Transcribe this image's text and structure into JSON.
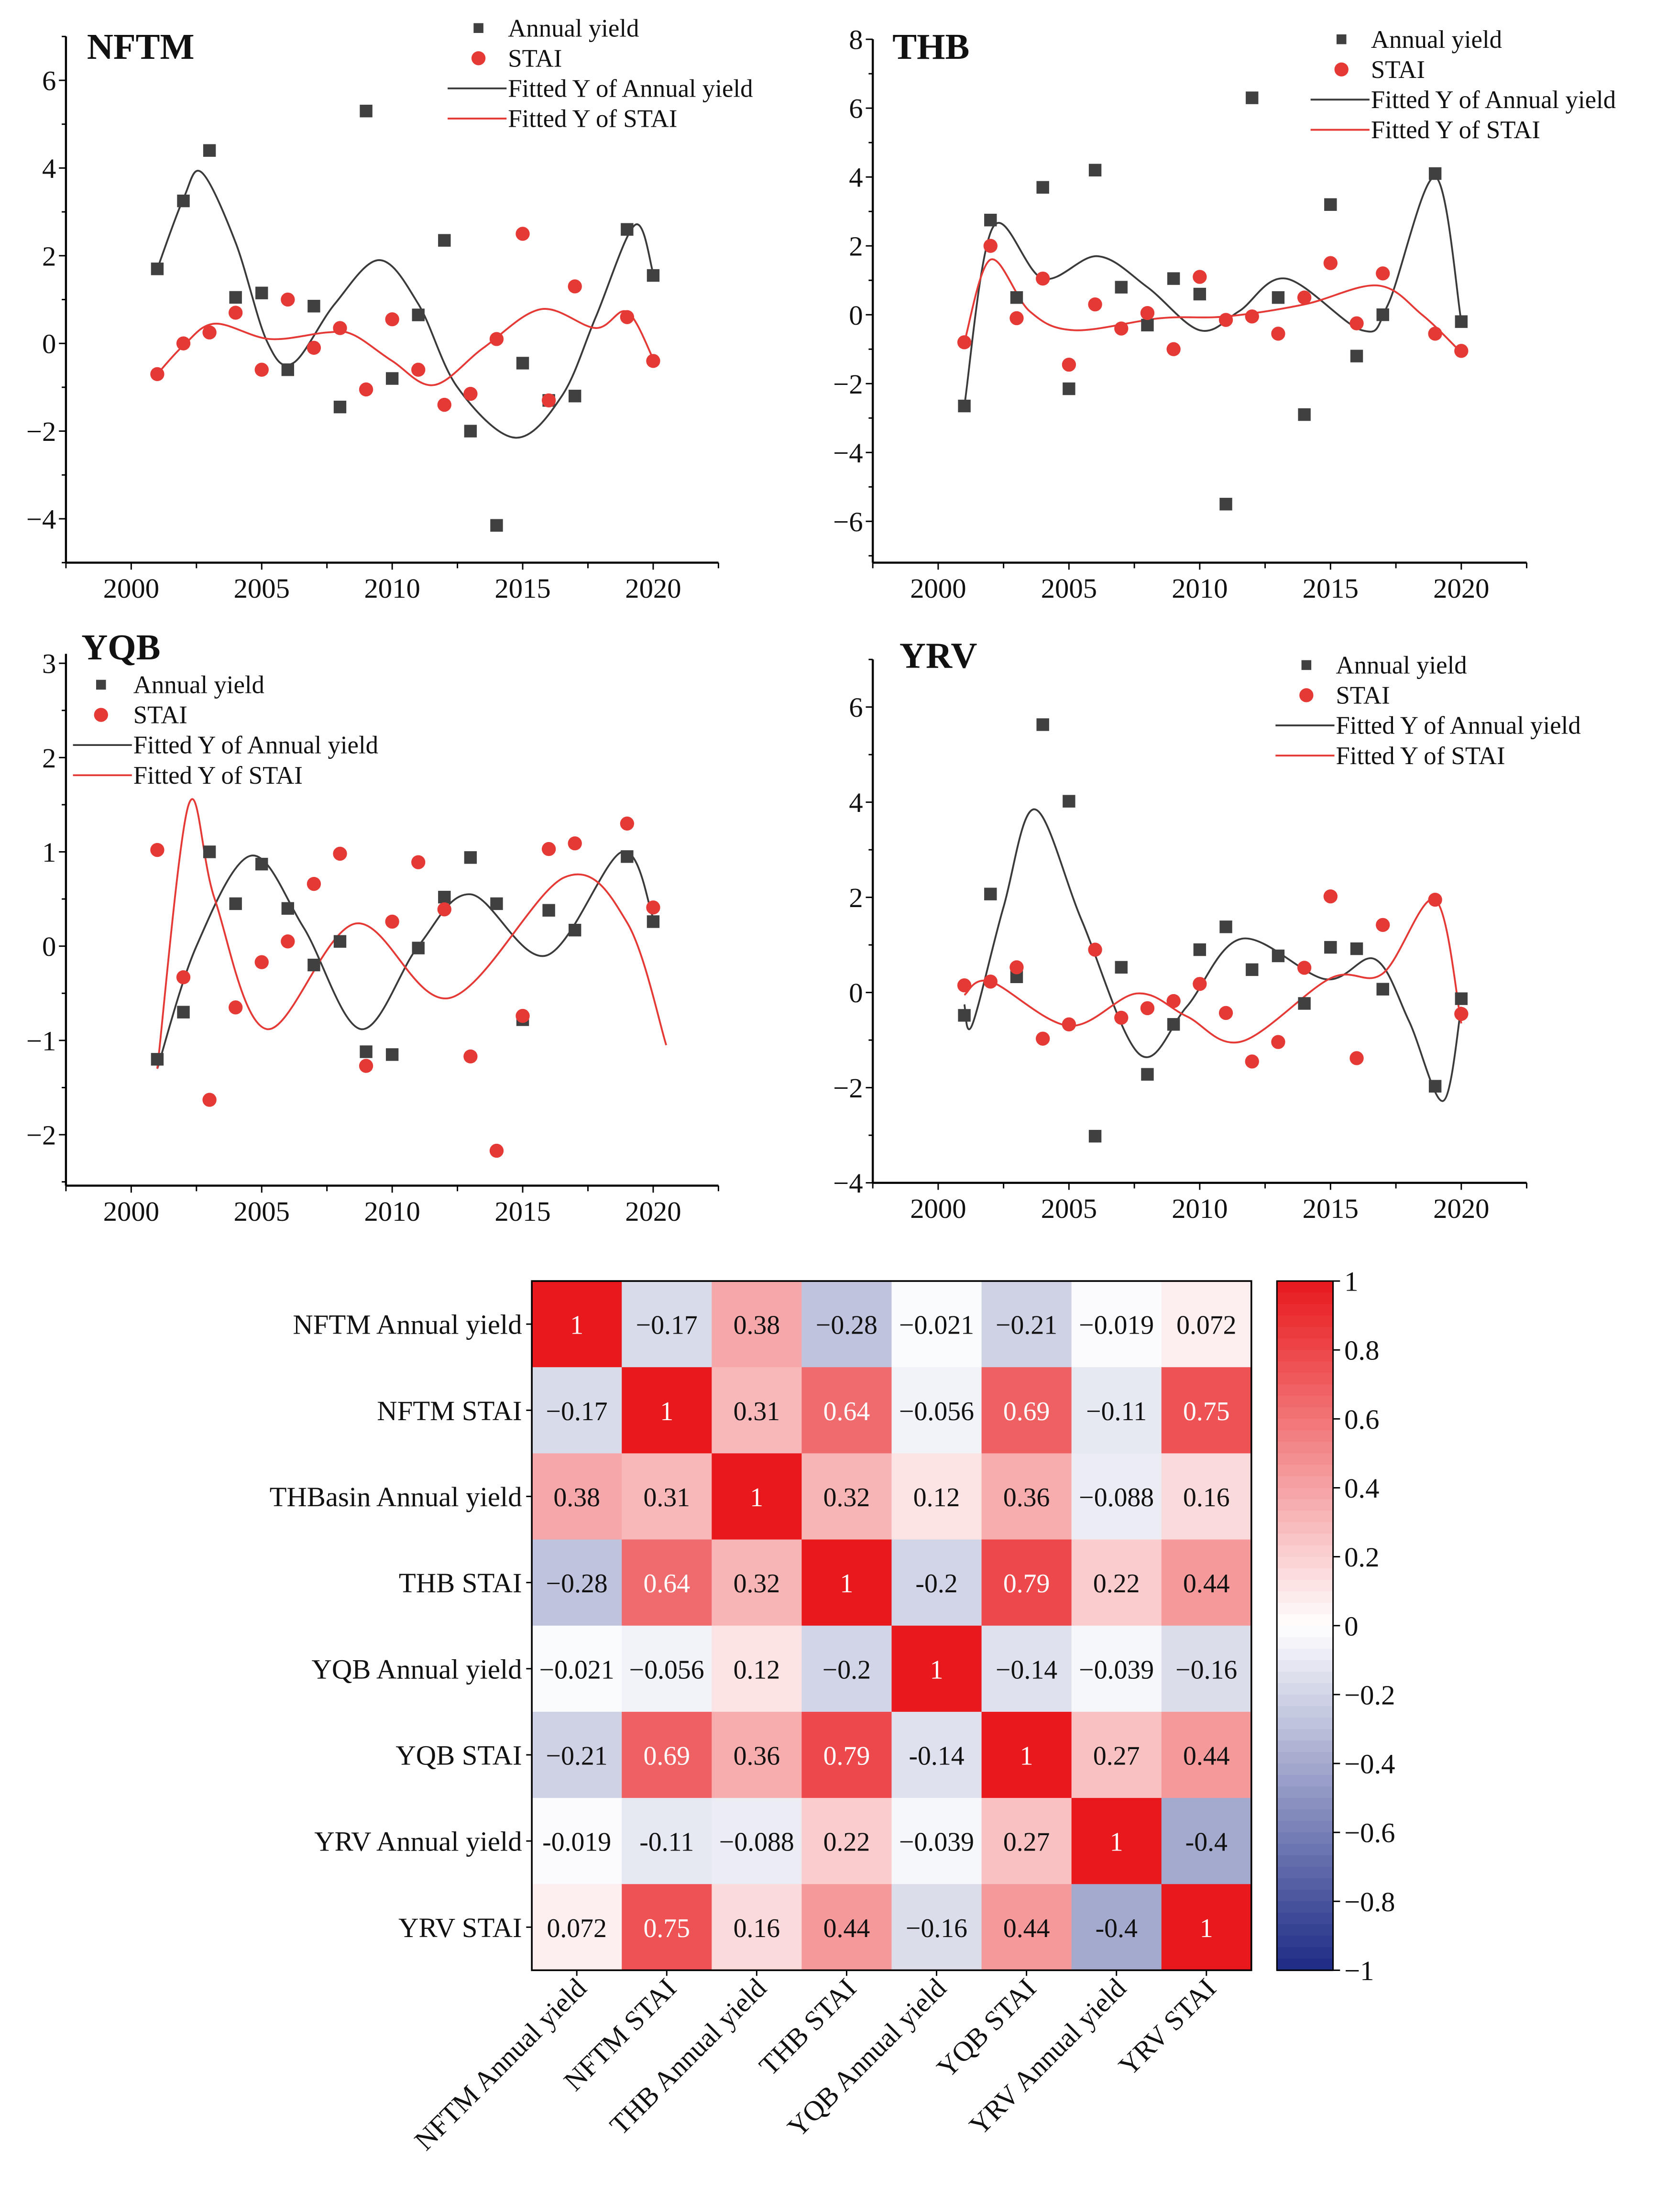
{
  "chart_data": [
    {
      "type": "scatter",
      "title": "NFTM",
      "xlim": [
        1997.5,
        2022.5
      ],
      "ylim": [
        -5,
        7
      ],
      "xticks": [
        2000,
        2005,
        2010,
        2015,
        2020
      ],
      "yticks": [
        -4,
        -2,
        0,
        2,
        4,
        6
      ],
      "legend_position": "top-right",
      "legend": [
        "Annual yield",
        "STAI",
        "Fitted Y of Annual yield",
        "Fitted Y of STAI"
      ],
      "x": [
        2001,
        2002,
        2003,
        2004,
        2005,
        2006,
        2007,
        2008,
        2009,
        2010,
        2011,
        2012,
        2013,
        2014,
        2015,
        2016,
        2017,
        2019,
        2020
      ],
      "series": [
        {
          "name": "Annual yield",
          "values": [
            1.7,
            3.25,
            4.4,
            1.05,
            1.15,
            -0.6,
            0.85,
            -1.45,
            5.3,
            -0.8,
            0.65,
            2.35,
            -2.0,
            -4.15,
            -0.45,
            -1.3,
            -1.2,
            2.6,
            1.55
          ]
        },
        {
          "name": "STAI",
          "values": [
            -0.7,
            0.0,
            0.25,
            0.7,
            -0.6,
            1.0,
            -0.1,
            0.35,
            -1.05,
            0.55,
            -0.6,
            -1.4,
            -1.15,
            0.1,
            2.5,
            -1.3,
            1.3,
            0.6,
            -0.4
          ]
        }
      ],
      "fitted": [
        {
          "name": "Fitted Y of Annual yield",
          "x": [
            2001,
            2002,
            2002.7,
            2004,
            2005.2,
            2006.2,
            2007.8,
            2009.5,
            2011,
            2012.5,
            2014.7,
            2016.5,
            2017.8,
            2019.3,
            2020
          ],
          "y": [
            1.7,
            3.3,
            3.9,
            2.3,
            0.05,
            -0.45,
            0.9,
            1.9,
            0.9,
            -1.0,
            -2.15,
            -1.2,
            0.6,
            2.7,
            1.6
          ]
        },
        {
          "name": "Fitted Y of STAI",
          "x": [
            2001,
            2002,
            2003.2,
            2005.3,
            2007.5,
            2008.5,
            2010,
            2011.6,
            2013.5,
            2015.7,
            2017.8,
            2019,
            2020
          ],
          "y": [
            -0.7,
            -0.05,
            0.45,
            0.1,
            0.25,
            0.2,
            -0.4,
            -0.95,
            -0.1,
            0.78,
            0.35,
            0.72,
            -0.35
          ]
        }
      ]
    },
    {
      "type": "scatter",
      "title": "THB",
      "xlim": [
        1997.5,
        2022.5
      ],
      "ylim": [
        -7.2,
        8
      ],
      "xticks": [
        2000,
        2005,
        2010,
        2015,
        2020
      ],
      "yticks": [
        -6,
        -4,
        -2,
        0,
        2,
        4,
        6,
        8
      ],
      "legend_position": "top-right",
      "legend": [
        "Annual yield",
        "STAI",
        "Fitted Y of Annual yield",
        "Fitted Y of STAI"
      ],
      "x": [
        2001,
        2002,
        2003,
        2004,
        2005,
        2006,
        2007,
        2008,
        2009,
        2010,
        2011,
        2012,
        2013,
        2014,
        2015,
        2016,
        2017,
        2019,
        2020
      ],
      "series": [
        {
          "name": "Annual yield",
          "values": [
            -2.65,
            2.75,
            0.5,
            3.7,
            -2.15,
            4.2,
            0.8,
            -0.3,
            1.05,
            0.6,
            -5.5,
            6.3,
            0.5,
            -2.9,
            3.2,
            -1.2,
            0.0,
            4.1,
            -0.2
          ]
        },
        {
          "name": "STAI",
          "values": [
            -0.8,
            2.0,
            -0.1,
            1.05,
            -1.45,
            0.3,
            -0.4,
            0.05,
            -1.0,
            1.1,
            -0.15,
            -0.05,
            -0.55,
            0.5,
            1.5,
            -0.25,
            1.2,
            -0.55,
            -1.05
          ]
        }
      ],
      "fitted": [
        {
          "name": "Fitted Y of Annual yield",
          "x": [
            2001,
            2002.1,
            2004,
            2006.1,
            2008,
            2010,
            2011.5,
            2013.3,
            2016.2,
            2017.2,
            2019,
            2020
          ],
          "y": [
            -2.65,
            2.55,
            1.05,
            1.7,
            0.8,
            -0.45,
            0.1,
            1.05,
            -0.45,
            0.3,
            4.0,
            -0.2
          ]
        },
        {
          "name": "Fitted Y of STAI",
          "x": [
            2001,
            2002,
            2003.5,
            2005.2,
            2008.5,
            2011,
            2014,
            2016.8,
            2018.5,
            2020
          ],
          "y": [
            -0.8,
            1.6,
            0.1,
            -0.45,
            -0.1,
            -0.05,
            0.3,
            0.85,
            0.0,
            -1.1
          ]
        }
      ]
    },
    {
      "type": "scatter",
      "title": "YQB",
      "xlim": [
        1997.5,
        2022.5
      ],
      "ylim": [
        -2.54,
        3.1
      ],
      "xticks": [
        2000,
        2005,
        2010,
        2015,
        2020
      ],
      "yticks": [
        -2,
        -1,
        0,
        1,
        2,
        3
      ],
      "legend_position": "top-left",
      "legend": [
        "Annual yield",
        "STAI",
        "Fitted Y of Annual yield",
        "Fitted Y of STAI"
      ],
      "x": [
        2001,
        2002,
        2003,
        2004,
        2005,
        2006,
        2007,
        2008,
        2009,
        2010,
        2011,
        2012,
        2013,
        2014,
        2015,
        2016,
        2017,
        2019,
        2020
      ],
      "series": [
        {
          "name": "Annual yield",
          "values": [
            -1.2,
            -0.7,
            1.0,
            0.45,
            0.87,
            0.4,
            -0.2,
            0.05,
            -1.12,
            -1.15,
            -0.02,
            0.52,
            0.94,
            0.45,
            -0.78,
            0.38,
            0.17,
            0.95,
            0.26
          ]
        },
        {
          "name": "STAI",
          "values": [
            1.02,
            -0.33,
            -1.63,
            -0.65,
            -0.17,
            0.05,
            0.66,
            0.98,
            -1.27,
            0.26,
            0.89,
            0.39,
            -1.17,
            -2.17,
            -0.74,
            1.03,
            1.09,
            1.3,
            0.41
          ]
        }
      ],
      "fitted": [
        {
          "name": "Fitted Y of Annual yield",
          "x": [
            2001,
            2002.5,
            2004.6,
            2006.6,
            2008.8,
            2011,
            2013,
            2015.9,
            2018.8,
            2020
          ],
          "y": [
            -1.3,
            0.0,
            0.96,
            0.2,
            -0.88,
            0.0,
            0.55,
            -0.1,
            1.0,
            0.3
          ]
        },
        {
          "name": "Fitted Y of STAI",
          "x": [
            2001,
            2002.2,
            2003.2,
            2005.2,
            2008.6,
            2012.2,
            2016.6,
            2019,
            2020.5
          ],
          "y": [
            -1.3,
            1.5,
            0.5,
            -0.88,
            0.24,
            -0.55,
            0.73,
            0.25,
            -1.05
          ]
        }
      ]
    },
    {
      "type": "scatter",
      "title": "YRV",
      "xlim": [
        1997.5,
        2022.5
      ],
      "ylim": [
        -4,
        7
      ],
      "xticks": [
        2000,
        2005,
        2010,
        2015,
        2020
      ],
      "yticks": [
        -4,
        -2,
        0,
        2,
        4,
        6
      ],
      "legend_position": "top-right",
      "legend": [
        "Annual yield",
        "STAI",
        "Fitted Y of Annual yield",
        "Fitted Y of STAI"
      ],
      "x": [
        2001,
        2002,
        2003,
        2004,
        2005,
        2006,
        2007,
        2008,
        2009,
        2010,
        2011,
        2012,
        2013,
        2014,
        2015,
        2016,
        2017,
        2019,
        2020
      ],
      "series": [
        {
          "name": "Annual yield",
          "values": [
            -0.48,
            2.07,
            0.33,
            5.63,
            4.02,
            -3.02,
            0.53,
            -1.72,
            -0.67,
            0.9,
            1.38,
            0.48,
            0.77,
            -0.23,
            0.95,
            0.92,
            0.07,
            -1.97,
            -0.13
          ]
        },
        {
          "name": "STAI",
          "values": [
            0.15,
            0.23,
            0.53,
            -0.97,
            -0.67,
            0.9,
            -0.53,
            -0.33,
            -0.18,
            0.18,
            -0.43,
            -1.45,
            -1.04,
            0.52,
            2.02,
            -1.38,
            1.42,
            1.95,
            -0.45
          ]
        }
      ],
      "fitted": [
        {
          "name": "Fitted Y of Annual yield",
          "x": [
            2001,
            2001.3,
            2002.5,
            2003.7,
            2005.5,
            2007.7,
            2009.5,
            2011.6,
            2014.8,
            2016.7,
            2018,
            2019.3,
            2020
          ],
          "y": [
            -0.25,
            -0.68,
            1.8,
            3.85,
            1.5,
            -1.3,
            -0.3,
            1.13,
            0.28,
            0.7,
            -0.6,
            -2.28,
            -0.3
          ]
        },
        {
          "name": "Fitted Y of STAI",
          "x": [
            2001,
            2002,
            2005,
            2007.6,
            2009.5,
            2011.6,
            2015,
            2017,
            2019,
            2020
          ],
          "y": [
            -0.05,
            0.23,
            -0.7,
            -0.02,
            -0.5,
            -1.03,
            0.3,
            0.4,
            1.95,
            -0.65
          ]
        }
      ]
    },
    {
      "type": "heatmap",
      "labels": [
        "NFTM Annual yield",
        "NFTM STAI",
        "THBasin Annual  yield",
        "THB STAI",
        "YQB Annual yield",
        "YQB STAI",
        "YRV Annual yield",
        "YRV STAI"
      ],
      "col_labels": [
        "NFTM Annual yield",
        "NFTM STAI",
        "THB Annual  yield",
        "THB STAI",
        "YQB Annual yield",
        "YQB STAI",
        "YRV Annual yield",
        "YRV STAI"
      ],
      "values": [
        [
          1,
          -0.17,
          0.38,
          -0.28,
          -0.021,
          -0.21,
          -0.019,
          0.072
        ],
        [
          -0.17,
          1,
          0.31,
          0.64,
          -0.056,
          0.69,
          -0.11,
          0.75
        ],
        [
          0.38,
          0.31,
          1,
          0.32,
          0.12,
          0.36,
          -0.088,
          0.16
        ],
        [
          -0.28,
          0.64,
          0.32,
          1,
          -0.2,
          0.79,
          0.22,
          0.44
        ],
        [
          -0.021,
          -0.056,
          0.12,
          -0.2,
          1,
          -0.14,
          -0.039,
          -0.16
        ],
        [
          -0.21,
          0.69,
          0.36,
          0.79,
          -0.14,
          1,
          0.27,
          0.44
        ],
        [
          -0.019,
          -0.11,
          -0.088,
          0.22,
          -0.039,
          0.27,
          1,
          -0.4
        ],
        [
          0.072,
          0.75,
          0.16,
          0.44,
          -0.16,
          0.44,
          -0.4,
          1
        ]
      ],
      "cell_text": [
        [
          "1",
          "−0.17",
          "0.38",
          "−0.28",
          "−0.021",
          "−0.21",
          "−0.019",
          "0.072"
        ],
        [
          "−0.17",
          "1",
          "0.31",
          "0.64",
          "−0.056",
          "0.69",
          "−0.11",
          "0.75"
        ],
        [
          "0.38",
          "0.31",
          "1",
          "0.32",
          "0.12",
          "0.36",
          "−0.088",
          "0.16"
        ],
        [
          "−0.28",
          "0.64",
          "0.32",
          "1",
          "-0.2",
          "0.79",
          "0.22",
          "0.44"
        ],
        [
          "−0.021",
          "−0.056",
          "0.12",
          "−0.2",
          "1",
          "−0.14",
          "−0.039",
          "−0.16"
        ],
        [
          "−0.21",
          "0.69",
          "0.36",
          "0.79",
          "-0.14",
          "1",
          "0.27",
          "0.44"
        ],
        [
          "-0.019",
          "-0.11",
          "−0.088",
          "0.22",
          "−0.039",
          "0.27",
          "1",
          "-0.4"
        ],
        [
          "0.072",
          "0.75",
          "0.16",
          "0.44",
          "−0.16",
          "0.44",
          "-0.4",
          "1"
        ]
      ],
      "colorbar_ticks": [
        "1",
        "0.8",
        "0.6",
        "0.4",
        "0.2",
        "0",
        "−0.2",
        "−0.4",
        "−0.6",
        "−0.8",
        "−1"
      ],
      "range": [
        -1,
        1
      ]
    }
  ],
  "colors": {
    "yield": "#404040",
    "stai": "#e53935",
    "fit_yield": "#3a3a3a",
    "fit_stai": "#e53935",
    "pos": "#e8181c",
    "neg": "#1c2a85",
    "mid": "#ffffff"
  }
}
